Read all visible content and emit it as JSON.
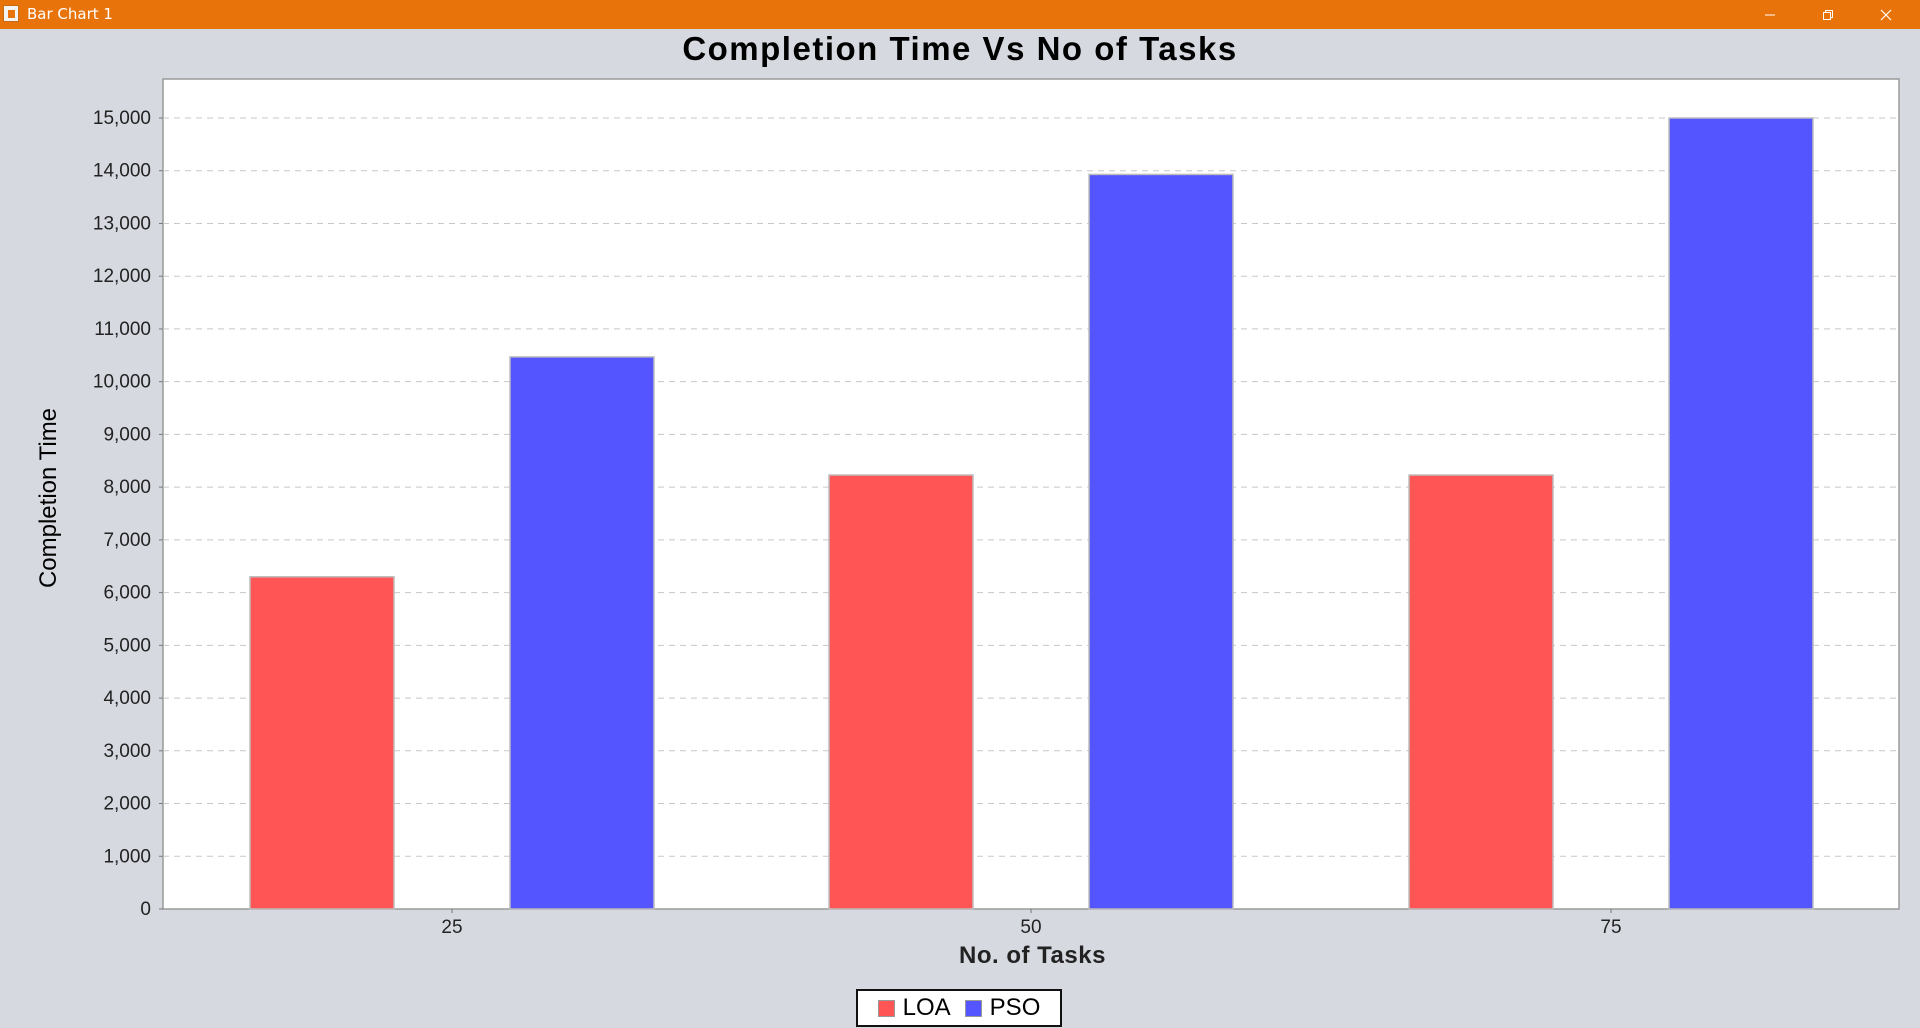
{
  "window": {
    "title": "Bar Chart 1",
    "app_icon": "java-icon",
    "controls": [
      "minimize-icon",
      "maximize-icon",
      "close-icon"
    ]
  },
  "colors": {
    "titlebar": "#e8730a",
    "background": "#d6d9e0",
    "plot_background": "#ffffff",
    "LOA": "#ff5555",
    "PSO": "#5555ff"
  },
  "chart_data": {
    "type": "bar",
    "title": "Completion Time Vs No of Tasks",
    "xlabel": "No. of Tasks",
    "ylabel": "Completion Time",
    "categories": [
      "25",
      "50",
      "75"
    ],
    "series": [
      {
        "name": "LOA",
        "values": [
          6300,
          8230,
          8230
        ]
      },
      {
        "name": "PSO",
        "values": [
          10470,
          13930,
          15000
        ]
      }
    ],
    "ylim": [
      0,
      15700
    ],
    "yticks": [
      "0",
      "1,000",
      "2,000",
      "3,000",
      "4,000",
      "5,000",
      "6,000",
      "7,000",
      "8,000",
      "9,000",
      "10,000",
      "11,000",
      "12,000",
      "13,000",
      "14,000",
      "15,000"
    ],
    "grid": "horizontal dashed",
    "legend": "bottom-center"
  }
}
